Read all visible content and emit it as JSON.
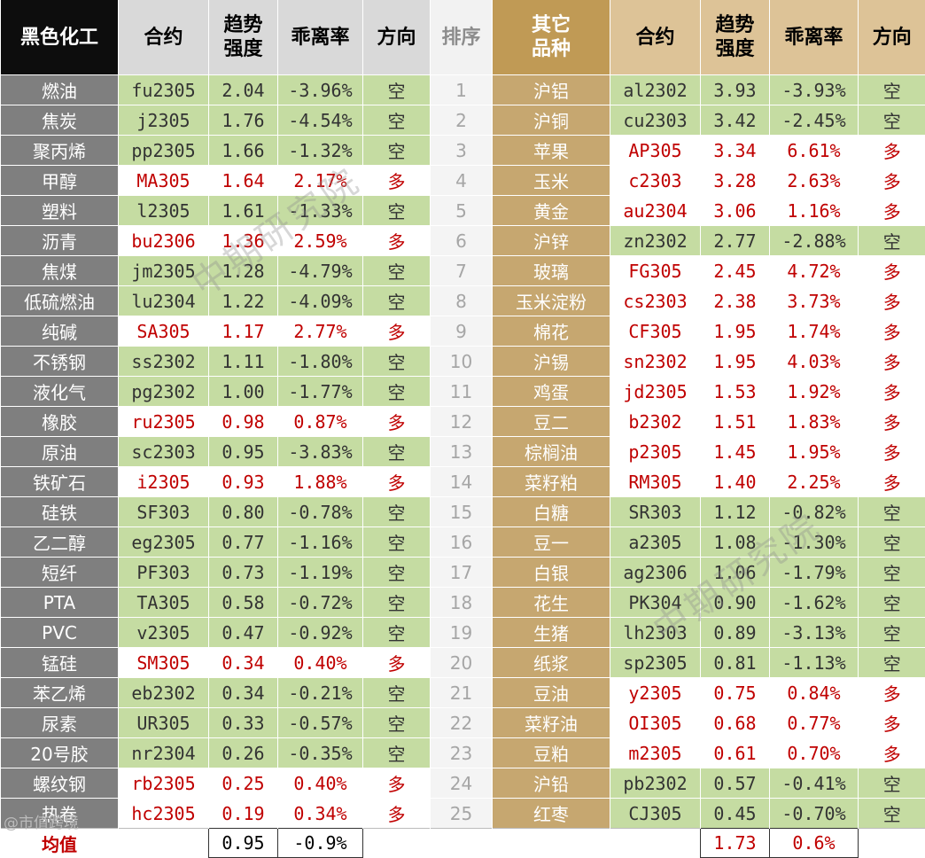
{
  "header": {
    "left_name": "黑色化工",
    "contract": "合约",
    "strength_l1": "趋势",
    "strength_l2": "强度",
    "deviation": "乖离率",
    "direction": "方向",
    "rank": "排序",
    "right_name_l1": "其它",
    "right_name_l2": "品种"
  },
  "rows": [
    {
      "rank": "1",
      "l_name": "燃油",
      "l_contract": "fu2305",
      "l_strength": "2.04",
      "l_dev": "-3.96%",
      "l_dir": "空",
      "r_name": "沪铝",
      "r_contract": "al2302",
      "r_strength": "3.93",
      "r_dev": "-3.93%",
      "r_dir": "空"
    },
    {
      "rank": "2",
      "l_name": "焦炭",
      "l_contract": "j2305",
      "l_strength": "1.76",
      "l_dev": "-4.54%",
      "l_dir": "空",
      "r_name": "沪铜",
      "r_contract": "cu2303",
      "r_strength": "3.42",
      "r_dev": "-2.45%",
      "r_dir": "空"
    },
    {
      "rank": "3",
      "l_name": "聚丙烯",
      "l_contract": "pp2305",
      "l_strength": "1.66",
      "l_dev": "-1.32%",
      "l_dir": "空",
      "r_name": "苹果",
      "r_contract": "AP305",
      "r_strength": "3.34",
      "r_dev": "6.61%",
      "r_dir": "多"
    },
    {
      "rank": "4",
      "l_name": "甲醇",
      "l_contract": "MA305",
      "l_strength": "1.64",
      "l_dev": "2.17%",
      "l_dir": "多",
      "r_name": "玉米",
      "r_contract": "c2303",
      "r_strength": "3.28",
      "r_dev": "2.63%",
      "r_dir": "多"
    },
    {
      "rank": "5",
      "l_name": "塑料",
      "l_contract": "l2305",
      "l_strength": "1.61",
      "l_dev": "-1.33%",
      "l_dir": "空",
      "r_name": "黄金",
      "r_contract": "au2304",
      "r_strength": "3.06",
      "r_dev": "1.16%",
      "r_dir": "多"
    },
    {
      "rank": "6",
      "l_name": "沥青",
      "l_contract": "bu2306",
      "l_strength": "1.36",
      "l_dev": "2.59%",
      "l_dir": "多",
      "r_name": "沪锌",
      "r_contract": "zn2302",
      "r_strength": "2.77",
      "r_dev": "-2.88%",
      "r_dir": "空"
    },
    {
      "rank": "7",
      "l_name": "焦煤",
      "l_contract": "jm2305",
      "l_strength": "1.28",
      "l_dev": "-4.79%",
      "l_dir": "空",
      "r_name": "玻璃",
      "r_contract": "FG305",
      "r_strength": "2.45",
      "r_dev": "4.72%",
      "r_dir": "多"
    },
    {
      "rank": "8",
      "l_name": "低硫燃油",
      "l_contract": "lu2304",
      "l_strength": "1.22",
      "l_dev": "-4.09%",
      "l_dir": "空",
      "r_name": "玉米淀粉",
      "r_contract": "cs2303",
      "r_strength": "2.38",
      "r_dev": "3.73%",
      "r_dir": "多"
    },
    {
      "rank": "9",
      "l_name": "纯碱",
      "l_contract": "SA305",
      "l_strength": "1.17",
      "l_dev": "2.77%",
      "l_dir": "多",
      "r_name": "棉花",
      "r_contract": "CF305",
      "r_strength": "1.95",
      "r_dev": "1.74%",
      "r_dir": "多"
    },
    {
      "rank": "10",
      "l_name": "不锈钢",
      "l_contract": "ss2302",
      "l_strength": "1.11",
      "l_dev": "-1.80%",
      "l_dir": "空",
      "r_name": "沪锡",
      "r_contract": "sn2302",
      "r_strength": "1.95",
      "r_dev": "4.03%",
      "r_dir": "多"
    },
    {
      "rank": "11",
      "l_name": "液化气",
      "l_contract": "pg2302",
      "l_strength": "1.00",
      "l_dev": "-1.77%",
      "l_dir": "空",
      "r_name": "鸡蛋",
      "r_contract": "jd2305",
      "r_strength": "1.53",
      "r_dev": "1.92%",
      "r_dir": "多"
    },
    {
      "rank": "12",
      "l_name": "橡胶",
      "l_contract": "ru2305",
      "l_strength": "0.98",
      "l_dev": "0.87%",
      "l_dir": "多",
      "r_name": "豆二",
      "r_contract": "b2302",
      "r_strength": "1.51",
      "r_dev": "1.83%",
      "r_dir": "多"
    },
    {
      "rank": "13",
      "l_name": "原油",
      "l_contract": "sc2303",
      "l_strength": "0.95",
      "l_dev": "-3.83%",
      "l_dir": "空",
      "r_name": "棕榈油",
      "r_contract": "p2305",
      "r_strength": "1.45",
      "r_dev": "1.95%",
      "r_dir": "多"
    },
    {
      "rank": "14",
      "l_name": "铁矿石",
      "l_contract": "i2305",
      "l_strength": "0.93",
      "l_dev": "1.88%",
      "l_dir": "多",
      "r_name": "菜籽粕",
      "r_contract": "RM305",
      "r_strength": "1.40",
      "r_dev": "2.25%",
      "r_dir": "多"
    },
    {
      "rank": "15",
      "l_name": "硅铁",
      "l_contract": "SF303",
      "l_strength": "0.80",
      "l_dev": "-0.78%",
      "l_dir": "空",
      "r_name": "白糖",
      "r_contract": "SR303",
      "r_strength": "1.12",
      "r_dev": "-0.82%",
      "r_dir": "空"
    },
    {
      "rank": "16",
      "l_name": "乙二醇",
      "l_contract": "eg2305",
      "l_strength": "0.77",
      "l_dev": "-1.16%",
      "l_dir": "空",
      "r_name": "豆一",
      "r_contract": "a2305",
      "r_strength": "1.08",
      "r_dev": "-1.30%",
      "r_dir": "空"
    },
    {
      "rank": "17",
      "l_name": "短纤",
      "l_contract": "PF303",
      "l_strength": "0.73",
      "l_dev": "-1.19%",
      "l_dir": "空",
      "r_name": "白银",
      "r_contract": "ag2306",
      "r_strength": "1.06",
      "r_dev": "-1.79%",
      "r_dir": "空"
    },
    {
      "rank": "18",
      "l_name": "PTA",
      "l_contract": "TA305",
      "l_strength": "0.58",
      "l_dev": "-0.72%",
      "l_dir": "空",
      "r_name": "花生",
      "r_contract": "PK304",
      "r_strength": "0.90",
      "r_dev": "-1.62%",
      "r_dir": "空"
    },
    {
      "rank": "19",
      "l_name": "PVC",
      "l_contract": "v2305",
      "l_strength": "0.47",
      "l_dev": "-0.92%",
      "l_dir": "空",
      "r_name": "生猪",
      "r_contract": "lh2303",
      "r_strength": "0.89",
      "r_dev": "-3.13%",
      "r_dir": "空"
    },
    {
      "rank": "20",
      "l_name": "锰硅",
      "l_contract": "SM305",
      "l_strength": "0.34",
      "l_dev": "0.40%",
      "l_dir": "多",
      "r_name": "纸浆",
      "r_contract": "sp2305",
      "r_strength": "0.81",
      "r_dev": "-1.13%",
      "r_dir": "空"
    },
    {
      "rank": "21",
      "l_name": "苯乙烯",
      "l_contract": "eb2302",
      "l_strength": "0.34",
      "l_dev": "-0.21%",
      "l_dir": "空",
      "r_name": "豆油",
      "r_contract": "y2305",
      "r_strength": "0.75",
      "r_dev": "0.84%",
      "r_dir": "多"
    },
    {
      "rank": "22",
      "l_name": "尿素",
      "l_contract": "UR305",
      "l_strength": "0.33",
      "l_dev": "-0.57%",
      "l_dir": "空",
      "r_name": "菜籽油",
      "r_contract": "OI305",
      "r_strength": "0.68",
      "r_dev": "0.77%",
      "r_dir": "多"
    },
    {
      "rank": "23",
      "l_name": "20号胶",
      "l_contract": "nr2304",
      "l_strength": "0.26",
      "l_dev": "-0.35%",
      "l_dir": "空",
      "r_name": "豆粕",
      "r_contract": "m2305",
      "r_strength": "0.61",
      "r_dev": "0.70%",
      "r_dir": "多"
    },
    {
      "rank": "24",
      "l_name": "螺纹钢",
      "l_contract": "rb2305",
      "l_strength": "0.25",
      "l_dev": "0.40%",
      "l_dir": "多",
      "r_name": "沪铅",
      "r_contract": "pb2302",
      "r_strength": "0.57",
      "r_dev": "-0.41%",
      "r_dir": "空"
    },
    {
      "rank": "25",
      "l_name": "热卷",
      "l_contract": "hc2305",
      "l_strength": "0.19",
      "l_dev": "0.34%",
      "l_dir": "多",
      "r_name": "红枣",
      "r_contract": "CJ305",
      "r_strength": "0.45",
      "r_dev": "-0.70%",
      "r_dir": "空"
    }
  ],
  "average": {
    "label": "均值",
    "l_strength": "0.95",
    "l_dev": "-0.9%",
    "r_strength": "1.73",
    "r_dev": "0.6%"
  },
  "watermark": "中期研究院",
  "credit": "@市值跨境",
  "colors": {
    "short_fill": "#c5dca2",
    "long_text": "#c00000",
    "left_name_bg": "#7f7f7f",
    "right_name_bg": "#c6a770"
  }
}
